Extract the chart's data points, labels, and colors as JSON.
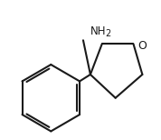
{
  "background_color": "#ffffff",
  "line_color": "#1a1a1a",
  "line_width": 1.5,
  "text_color": "#1a1a1a",
  "font_size_O": 9,
  "font_size_NH2": 8.5,
  "O_label": "O",
  "NH2_label": "NH",
  "NH2_sub": "2"
}
